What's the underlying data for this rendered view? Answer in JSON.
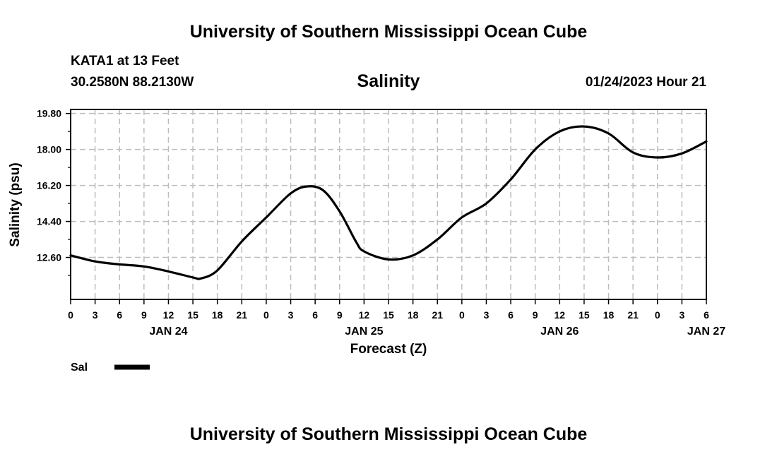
{
  "header": {
    "title": "University of Southern Mississippi Ocean Cube",
    "station": "KATA1 at 13 Feet",
    "coords": "30.2580N  88.2130W",
    "chart_title": "Salinity",
    "issued": "01/24/2023 Hour 21"
  },
  "legend": {
    "label": "Sal",
    "color": "#000000"
  },
  "footer": {
    "title": "University of Southern Mississippi Ocean Cube"
  },
  "chart_data": {
    "type": "line",
    "title": "Salinity",
    "xlabel": "Forecast (Z)",
    "ylabel": "Salinity (psu)",
    "x_unit": "hours from 01/24 00Z",
    "xlim": [
      0,
      78
    ],
    "ylim": [
      10.5,
      20.0
    ],
    "y_ticks": [
      "12.60",
      "14.40",
      "16.20",
      "18.00",
      "19.80"
    ],
    "x_tick_labels": [
      "0",
      "3",
      "6",
      "9",
      "12",
      "15",
      "18",
      "21",
      "0",
      "3",
      "6",
      "9",
      "12",
      "15",
      "18",
      "21",
      "0",
      "3",
      "6",
      "9",
      "12",
      "15",
      "18",
      "21",
      "0",
      "3",
      "6"
    ],
    "date_labels": [
      {
        "hour": 12,
        "label": "JAN 24"
      },
      {
        "hour": 36,
        "label": "JAN 25"
      },
      {
        "hour": 60,
        "label": "JAN 26"
      },
      {
        "hour": 78,
        "label": "JAN 27"
      }
    ],
    "grid": true,
    "series": [
      {
        "name": "Sal",
        "color": "#000000",
        "x": [
          0,
          3,
          6,
          9,
          12,
          15,
          16,
          18,
          21,
          24,
          27,
          29,
          31,
          33,
          35,
          36,
          39,
          42,
          45,
          48,
          51,
          54,
          57,
          60,
          63,
          66,
          69,
          72,
          75,
          78
        ],
        "y": [
          12.7,
          12.4,
          12.25,
          12.15,
          11.9,
          11.6,
          11.55,
          11.95,
          13.4,
          14.6,
          15.8,
          16.15,
          15.95,
          14.9,
          13.4,
          12.9,
          12.5,
          12.7,
          13.5,
          14.6,
          15.3,
          16.5,
          18.0,
          18.9,
          19.15,
          18.8,
          17.85,
          17.6,
          17.8,
          18.4
        ]
      }
    ]
  }
}
